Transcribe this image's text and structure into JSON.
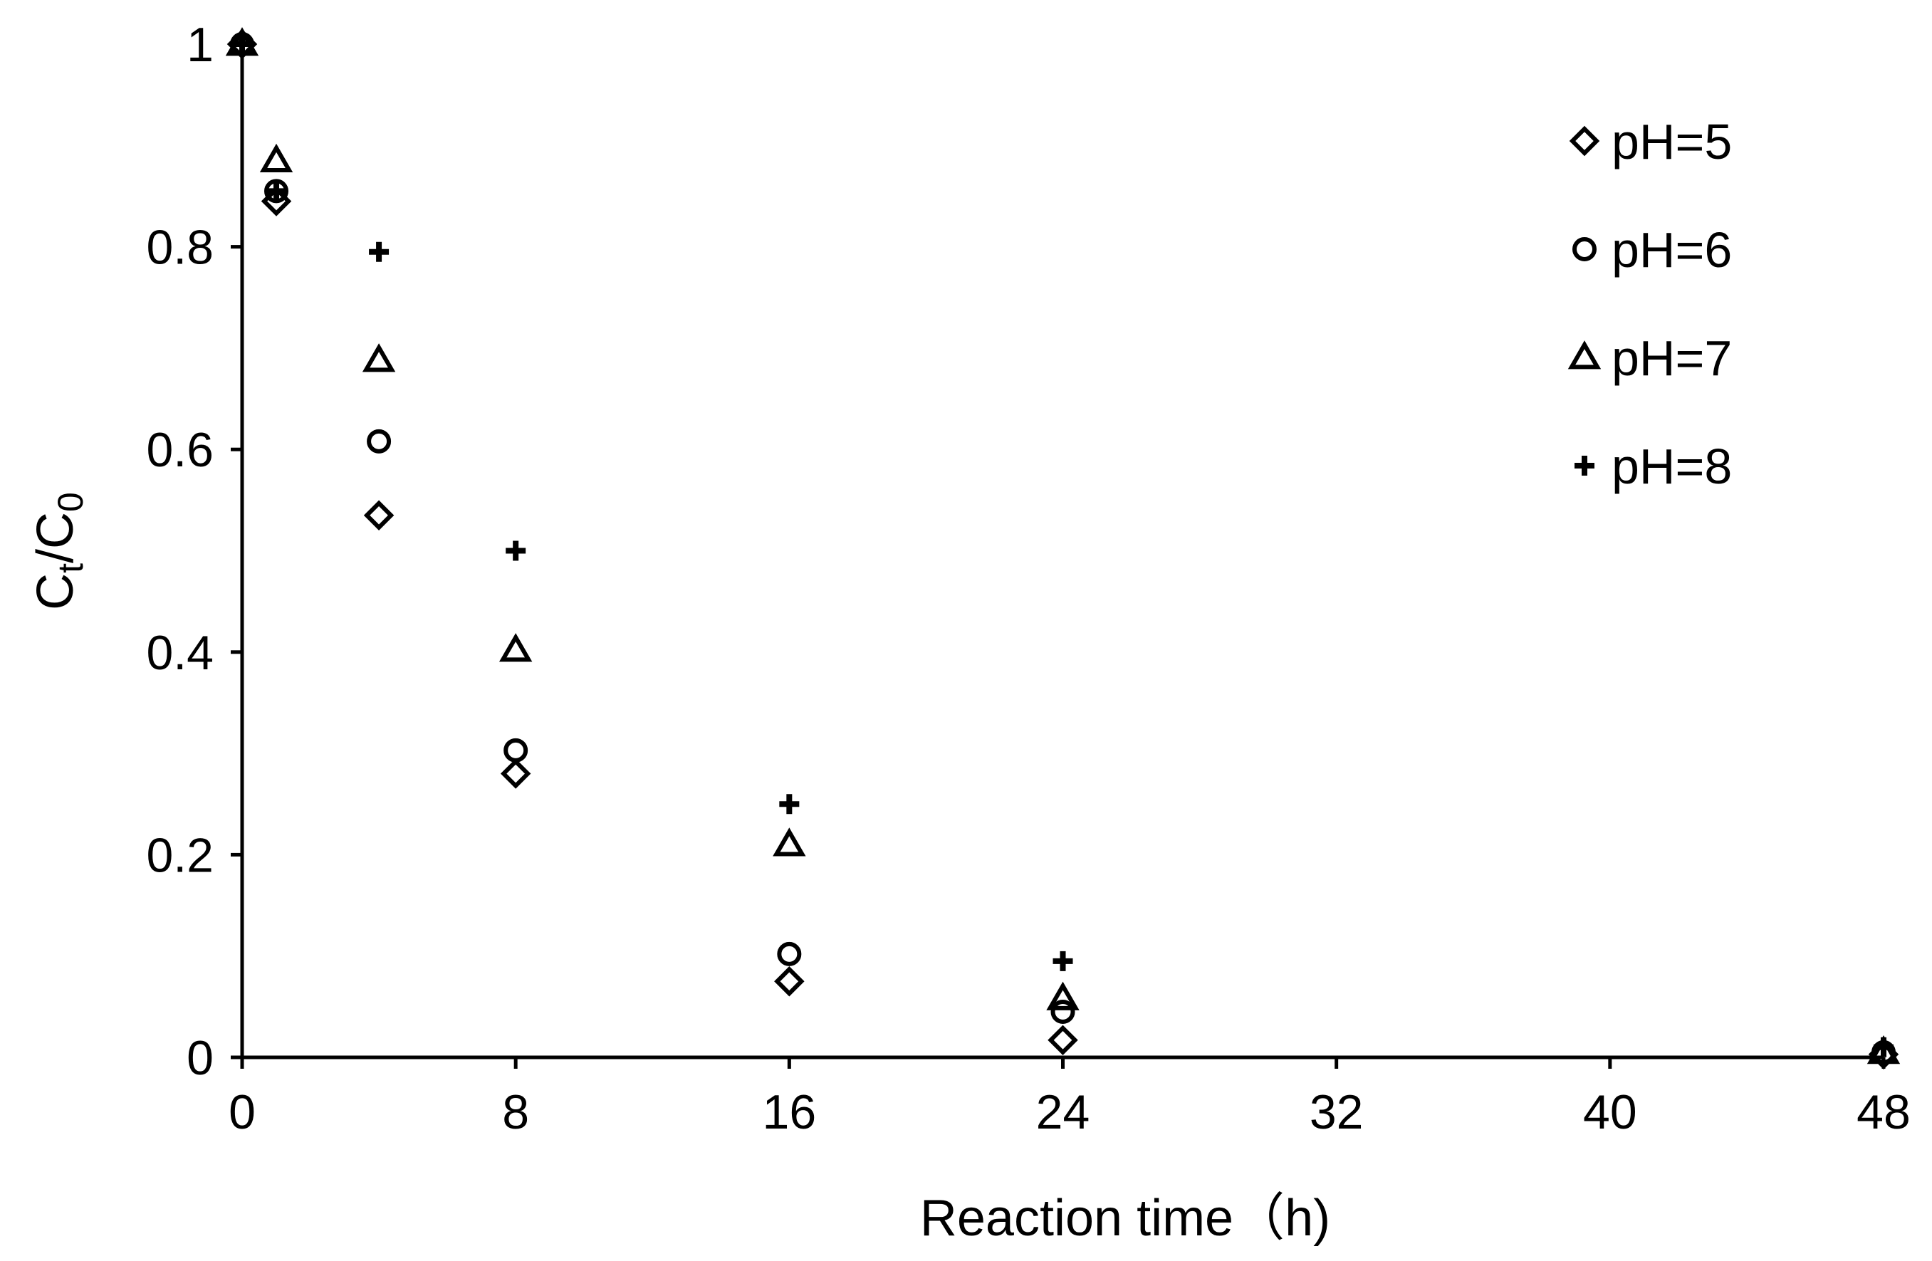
{
  "chart_data": {
    "type": "scatter",
    "xlabel": "Reaction time（h)",
    "ylabel": {
      "main": "C",
      "sub1": "t",
      "sep": "/C",
      "sub2": "0"
    },
    "xlim": [
      0,
      48
    ],
    "ylim": [
      0,
      1
    ],
    "xticks": [
      0,
      8,
      16,
      24,
      32,
      40,
      48
    ],
    "yticks": [
      0,
      0.2,
      0.4,
      0.6,
      0.8,
      1
    ],
    "ytick_labels": [
      "0",
      "0.2",
      "0.4",
      "0.6",
      "0.8",
      "1"
    ],
    "grid": false,
    "legend_position": "top-right",
    "series": [
      {
        "name": "pH=5",
        "marker": "diamond",
        "x": [
          0,
          1,
          4,
          8,
          16,
          24,
          48
        ],
        "y": [
          1.0,
          0.845,
          0.535,
          0.28,
          0.075,
          0.017,
          0.003
        ]
      },
      {
        "name": "pH=6",
        "marker": "circle",
        "x": [
          0,
          1,
          4,
          8,
          16,
          24,
          48
        ],
        "y": [
          1.0,
          0.855,
          0.608,
          0.303,
          0.102,
          0.045,
          0.005
        ]
      },
      {
        "name": "pH=7",
        "marker": "triangle",
        "x": [
          0,
          1,
          4,
          8,
          16,
          24,
          48
        ],
        "y": [
          1.0,
          0.885,
          0.688,
          0.402,
          0.21,
          0.058,
          0.005
        ]
      },
      {
        "name": "pH=8",
        "marker": "plus",
        "x": [
          0,
          1,
          4,
          8,
          16,
          24,
          48
        ],
        "y": [
          1.0,
          0.855,
          0.795,
          0.5,
          0.25,
          0.095,
          0.01
        ]
      }
    ]
  }
}
